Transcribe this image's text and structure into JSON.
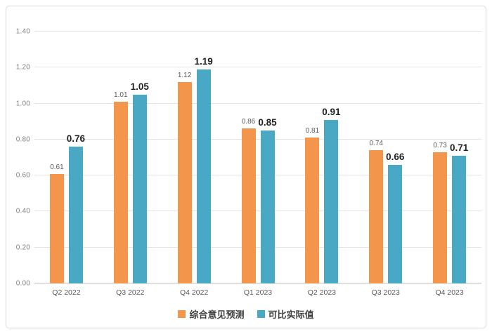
{
  "chart_data": {
    "type": "bar",
    "title": "",
    "xlabel": "",
    "ylabel": "",
    "categories": [
      "Q2 2022",
      "Q3 2022",
      "Q4 2022",
      "Q1 2023",
      "Q2 2023",
      "Q3 2023",
      "Q4 2023"
    ],
    "series": [
      {
        "name": "综合意见预测",
        "color": "#F3954B",
        "values": [
          0.61,
          1.01,
          1.12,
          0.86,
          0.81,
          0.74,
          0.73
        ],
        "labels": [
          "0.61",
          "1.01",
          "1.12",
          "0.86",
          "0.81",
          "0.74",
          "0.73"
        ],
        "label_style": "small-gray"
      },
      {
        "name": "可比实际值",
        "color": "#49A8C3",
        "values": [
          0.76,
          1.05,
          1.19,
          0.85,
          0.91,
          0.66,
          0.71
        ],
        "labels": [
          "0.76",
          "1.05",
          "1.19",
          "0.85",
          "0.91",
          "0.66",
          "0.71"
        ],
        "label_style": "big-bold"
      }
    ],
    "ylim": [
      0,
      1.4
    ],
    "ytick_step": 0.2,
    "yticks": [
      "0.00",
      "0.20",
      "0.40",
      "0.60",
      "0.80",
      "1.00",
      "1.20",
      "1.40"
    ],
    "grid": true,
    "data_labels": true,
    "legend_position": "bottom"
  },
  "colors": {
    "frame_border": "#d9d9d9",
    "gridline": "#e3e3e3",
    "axis_line": "#bfbfbf",
    "ytick_text": "#7f7f7f",
    "xtick_text": "#595959",
    "small_label_text": "#595959",
    "big_label_text": "#212121",
    "legend_text": "#404040"
  }
}
